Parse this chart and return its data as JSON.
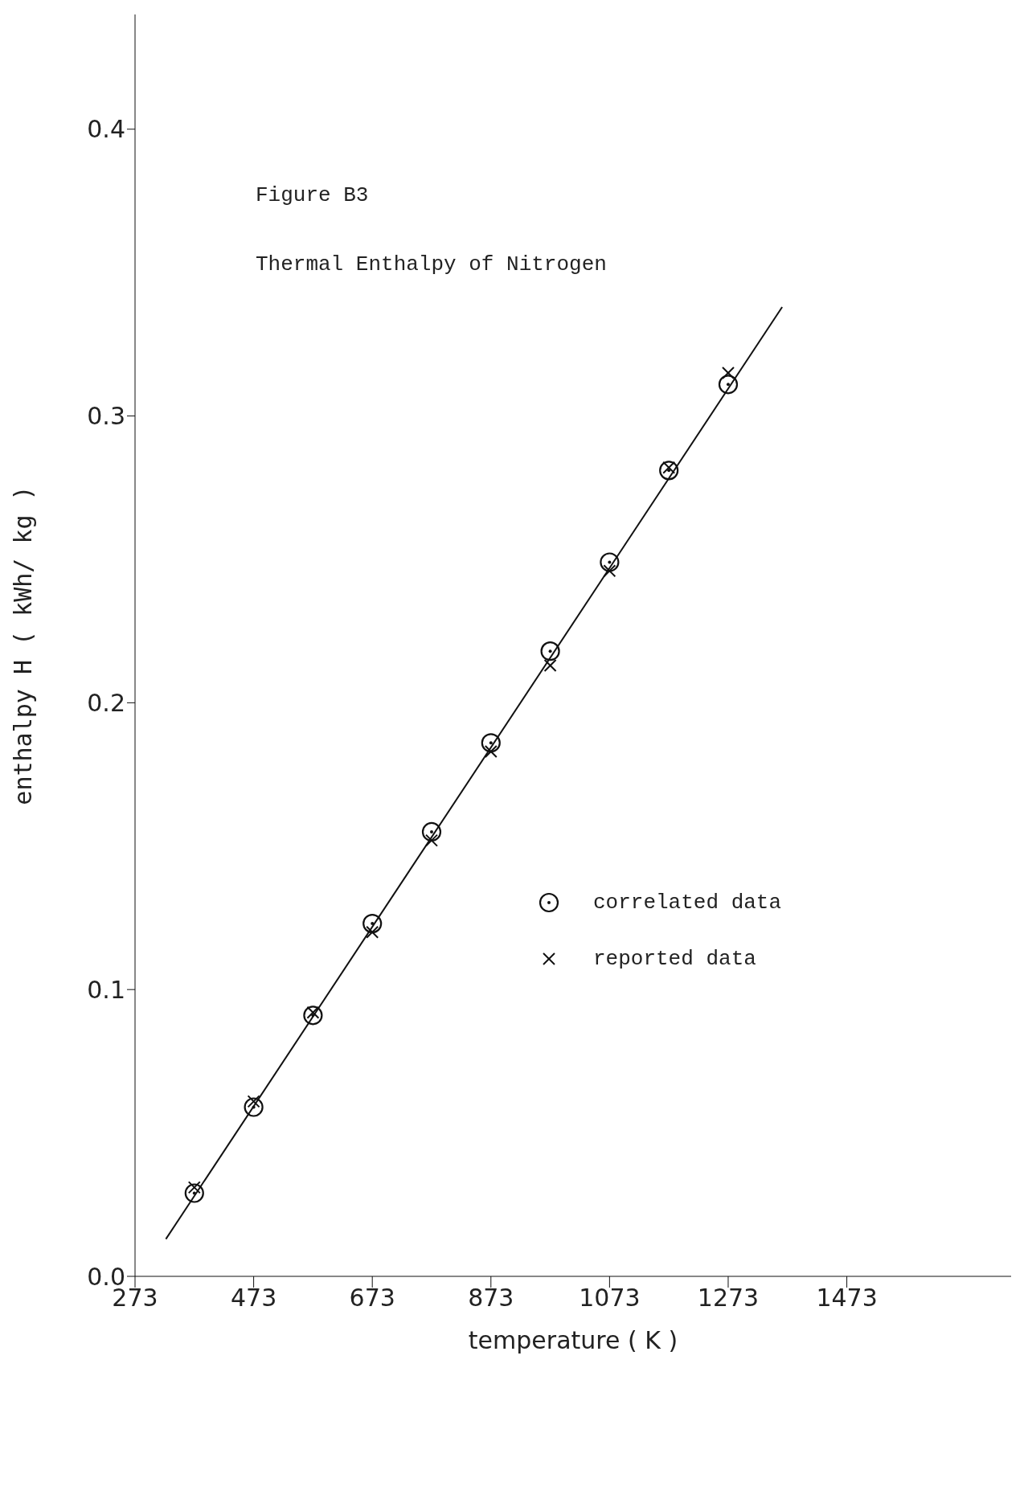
{
  "chart_data": {
    "type": "scatter",
    "title": "Figure B3",
    "subtitle": "Thermal Enthalpy of Nitrogen",
    "xlabel": "temperature   ( K )",
    "ylabel": "enthalpy    H        ( kWh/ kg )",
    "xlim": [
      273,
      1750
    ],
    "xticks": [
      273,
      473,
      673,
      873,
      1073,
      1273,
      1473
    ],
    "ylim": [
      0,
      0.44
    ],
    "yticks": [
      {
        "value": 0,
        "label": "0.0"
      },
      0.1,
      0.2,
      0.3,
      0.4
    ],
    "grid": false,
    "legend": "right",
    "series": [
      {
        "name": "correlated data",
        "marker": "circle",
        "color": "#111111",
        "x": [
          373,
          473,
          573,
          673,
          773,
          873,
          973,
          1073,
          1173,
          1273
        ],
        "values": [
          0.029,
          0.059,
          0.091,
          0.123,
          0.155,
          0.186,
          0.218,
          0.249,
          0.281,
          0.311
        ]
      },
      {
        "name": "reported data",
        "marker": "cross",
        "color": "#111111",
        "x": [
          373,
          473,
          573,
          673,
          773,
          873,
          973,
          1073,
          1173,
          1273
        ],
        "values": [
          0.031,
          0.061,
          0.092,
          0.12,
          0.152,
          0.183,
          0.213,
          0.246,
          0.282,
          0.315
        ]
      },
      {
        "type": "line",
        "marker": "none",
        "color": "#111111",
        "x": [
          325,
          1364
        ],
        "values": [
          0.013,
          0.338
        ]
      }
    ]
  }
}
